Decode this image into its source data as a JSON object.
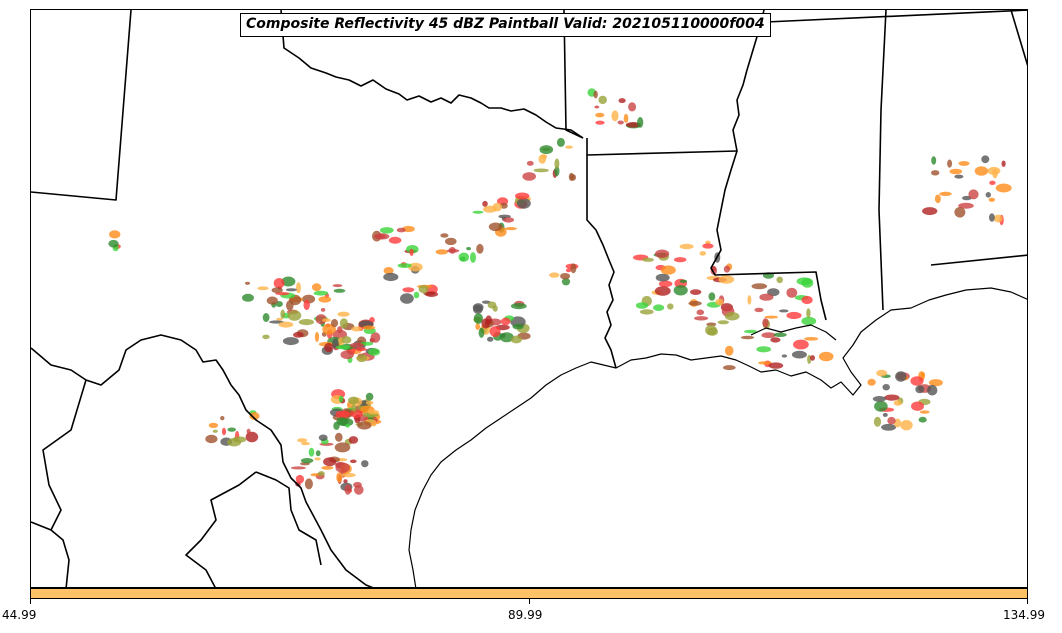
{
  "title": "Composite Reflectivity 45 dBZ Paintball Valid: 202105110000f004",
  "colorbar": {
    "color": "#ffc266",
    "ticks": [
      "44.99",
      "89.99",
      "134.99"
    ]
  },
  "colors": {
    "boundary": "#000000",
    "members": [
      "#ff3b3b",
      "#ff8c1a",
      "#ffb347",
      "#3bd43b",
      "#2e8b2e",
      "#a0522d",
      "#b22222",
      "#9aa33a",
      "#555555",
      "#cc4444"
    ]
  }
}
